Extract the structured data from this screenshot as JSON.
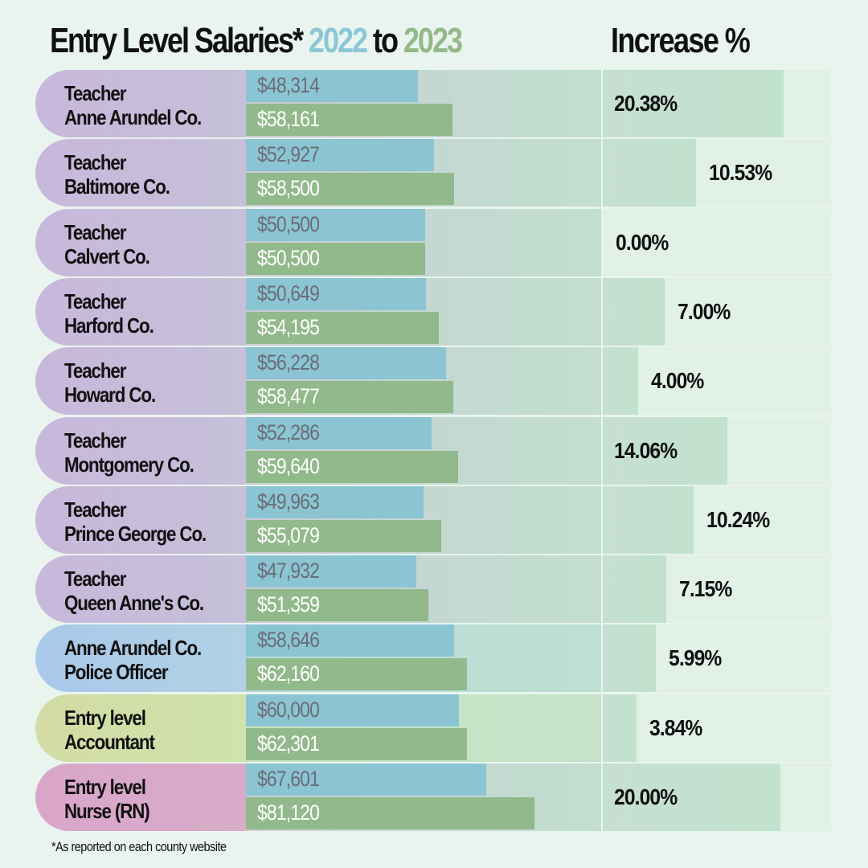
{
  "title": {
    "prefix": "Entry Level Salaries*",
    "year1": "2022",
    "connector": "to",
    "year2": "2023",
    "increase_header": "Increase %"
  },
  "footnote": "*As reported on each county website",
  "colors": {
    "year_2022": "#8bc5d3",
    "year_2023": "#92b98b",
    "teacher_label": "#c8b8dc",
    "police_label": "#a9c8ea",
    "accountant_label": "#d2dca4",
    "nurse_label": "#d9a6ca",
    "increase_bar": "#c1e2cd"
  },
  "chart_data": {
    "type": "bar",
    "title": "Entry Level Salaries* 2022 to 2023",
    "orientation": "horizontal",
    "legend": [
      "2022",
      "2023"
    ],
    "categories": [
      {
        "line1": "Teacher",
        "line2": "Anne Arundel Co.",
        "group": "teacher"
      },
      {
        "line1": "Teacher",
        "line2": "Baltimore Co.",
        "group": "teacher"
      },
      {
        "line1": "Teacher",
        "line2": "Calvert Co.",
        "group": "teacher"
      },
      {
        "line1": "Teacher",
        "line2": "Harford Co.",
        "group": "teacher"
      },
      {
        "line1": "Teacher",
        "line2": "Howard Co.",
        "group": "teacher"
      },
      {
        "line1": "Teacher",
        "line2": "Montgomery Co.",
        "group": "teacher"
      },
      {
        "line1": "Teacher",
        "line2": "Prince George Co.",
        "group": "teacher"
      },
      {
        "line1": "Teacher",
        "line2": "Queen Anne's Co.",
        "group": "teacher"
      },
      {
        "line1": "Anne Arundel Co.",
        "line2": "Police Officer",
        "group": "police"
      },
      {
        "line1": "Entry level",
        "line2": "Accountant",
        "group": "accountant"
      },
      {
        "line1": "Entry level",
        "line2": "Nurse (RN)",
        "group": "nurse"
      }
    ],
    "series": [
      {
        "name": "2022",
        "values": [
          48314,
          52927,
          50500,
          50649,
          56228,
          52286,
          49963,
          47932,
          58646,
          60000,
          67601
        ],
        "labels": [
          "$48,314",
          "$52,927",
          "$50,500",
          "$50,649",
          "$56,228",
          "$52,286",
          "$49,963",
          "$47,932",
          "$58,646",
          "$60,000",
          "$67,601"
        ]
      },
      {
        "name": "2023",
        "values": [
          58161,
          58500,
          50500,
          54195,
          58477,
          59640,
          55079,
          51359,
          62160,
          62301,
          81120
        ],
        "labels": [
          "$58,161",
          "$58,500",
          "$50,500",
          "$54,195",
          "$58,477",
          "$59,640",
          "$55,079",
          "$51,359",
          "$62,160",
          "$62,301",
          "$81,120"
        ]
      },
      {
        "name": "Increase %",
        "values": [
          20.38,
          10.53,
          0.0,
          7.0,
          4.0,
          14.06,
          10.24,
          7.15,
          5.99,
          3.84,
          20.0
        ],
        "labels": [
          "20.38%",
          "10.53%",
          "0.00%",
          "7.00%",
          "4.00%",
          "14.06%",
          "10.24%",
          "7.15%",
          "5.99%",
          "3.84%",
          "20.00%"
        ]
      }
    ],
    "salary_axis_max": 100000,
    "increase_axis_max": 25,
    "grid": false
  }
}
